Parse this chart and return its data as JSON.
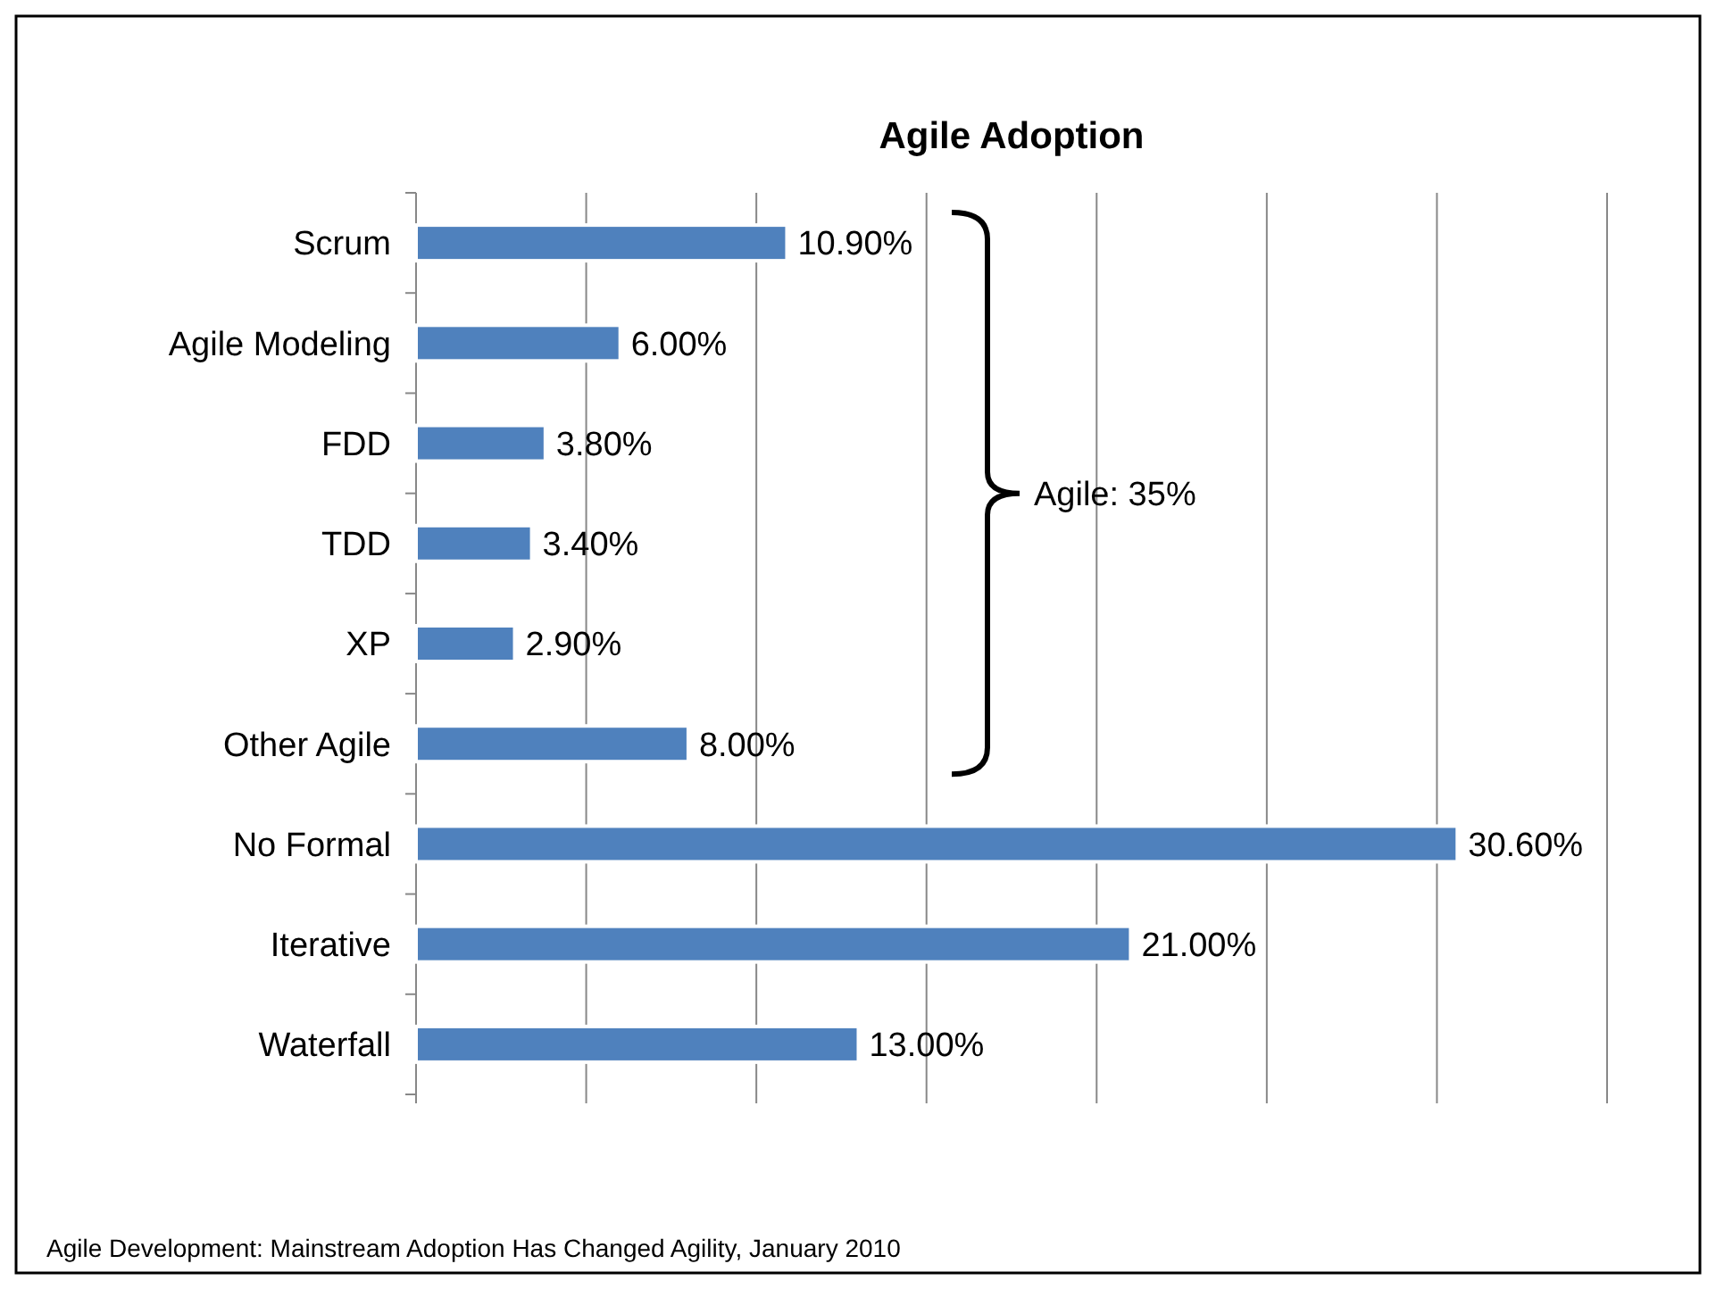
{
  "chart_data": {
    "type": "bar",
    "orientation": "horizontal",
    "title": "Agile Adoption",
    "categories": [
      "Scrum",
      "Agile Modeling",
      "FDD",
      "TDD",
      "XP",
      "Other Agile",
      "No Formal",
      "Iterative",
      "Waterfall"
    ],
    "values": [
      10.9,
      6.0,
      3.8,
      3.4,
      2.9,
      8.0,
      30.6,
      21.0,
      13.0
    ],
    "value_labels": [
      "10.90%",
      "6.00%",
      "3.80%",
      "3.40%",
      "2.90%",
      "8.00%",
      "30.60%",
      "21.00%",
      "13.00%"
    ],
    "color": "#4f81bd",
    "xlim": [
      0,
      35
    ],
    "xticks": [
      {
        "value": 0,
        "label": null
      },
      {
        "value": 5,
        "label": null
      },
      {
        "value": 10,
        "label": null
      },
      {
        "value": 15,
        "label": null
      },
      {
        "value": 20,
        "label": null
      },
      {
        "value": 25,
        "label": null
      },
      {
        "value": 30,
        "label": null
      },
      {
        "value": 35,
        "label": null
      }
    ],
    "grid": "x",
    "annotations": [
      "Agile: 35%",
      "Agile Development: Mainstream Adoption Has Changed Agility, January 2010"
    ]
  }
}
